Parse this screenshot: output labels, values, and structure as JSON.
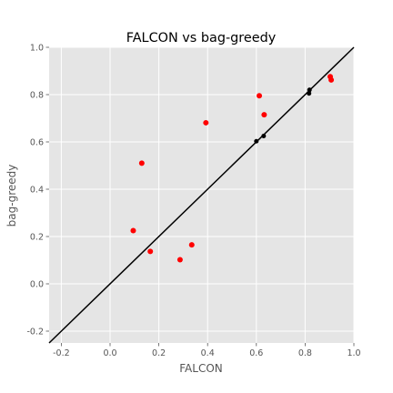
{
  "chart_data": {
    "type": "scatter",
    "title": "FALCON vs bag-greedy",
    "xlabel": "FALCON",
    "ylabel": "bag-greedy",
    "xlim": [
      -0.25,
      1.0
    ],
    "ylim": [
      -0.25,
      1.0
    ],
    "xticks": [
      "-0.2",
      "0.0",
      "0.2",
      "0.4",
      "0.6",
      "0.8",
      "1.0"
    ],
    "yticks": [
      "-0.2",
      "0.0",
      "0.2",
      "0.4",
      "0.6",
      "0.8",
      "1.0"
    ],
    "xtick_values": [
      -0.2,
      0.0,
      0.2,
      0.4,
      0.6,
      0.8,
      1.0
    ],
    "ytick_values": [
      -0.2,
      0.0,
      0.2,
      0.4,
      0.6,
      0.8,
      1.0
    ],
    "grid": true,
    "background": "#e5e5e5",
    "grid_color": "#ffffff",
    "reference_line": {
      "type": "y=x",
      "color": "#000000"
    },
    "series": [
      {
        "color": "#ff0000",
        "points": [
          {
            "x": 0.095,
            "y": 0.225
          },
          {
            "x": 0.13,
            "y": 0.51
          },
          {
            "x": 0.165,
            "y": 0.137
          },
          {
            "x": 0.287,
            "y": 0.102
          },
          {
            "x": 0.335,
            "y": 0.165
          },
          {
            "x": 0.393,
            "y": 0.681
          },
          {
            "x": 0.612,
            "y": 0.795
          },
          {
            "x": 0.632,
            "y": 0.715
          },
          {
            "x": 0.903,
            "y": 0.876
          },
          {
            "x": 0.907,
            "y": 0.862
          }
        ]
      },
      {
        "color": "#000000",
        "points": [
          {
            "x": 0.6,
            "y": 0.603
          },
          {
            "x": 0.63,
            "y": 0.625
          },
          {
            "x": 0.816,
            "y": 0.805
          },
          {
            "x": 0.818,
            "y": 0.82
          }
        ]
      }
    ]
  }
}
